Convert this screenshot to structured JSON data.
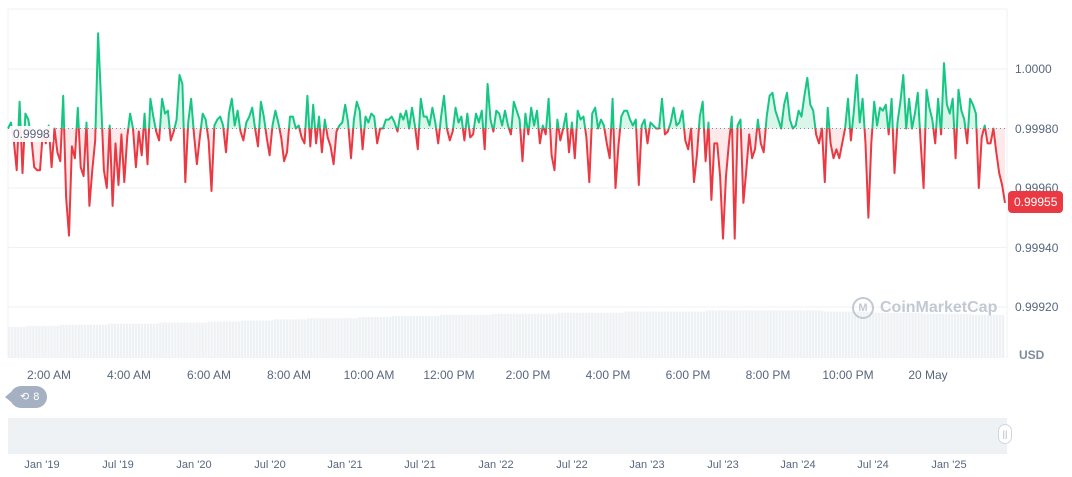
{
  "chart_data": {
    "type": "line",
    "title": "",
    "ylabel": "USD",
    "xlabel": "",
    "baseline": 0.9998,
    "current_price": 0.99955,
    "ylim": [
      0.99912,
      1.0002
    ],
    "y_ticks": [
      "1.0000",
      "0.99980",
      "0.99960",
      "0.99940",
      "0.99920"
    ],
    "x_ticks": [
      "2:00 AM",
      "4:00 AM",
      "6:00 AM",
      "8:00 AM",
      "10:00 AM",
      "12:00 PM",
      "2:00 PM",
      "4:00 PM",
      "6:00 PM",
      "8:00 PM",
      "10:00 PM",
      "20 May"
    ],
    "navigator_ticks": [
      "Jan '19",
      "Jul '19",
      "Jan '20",
      "Jul '20",
      "Jan '21",
      "Jul '21",
      "Jan '22",
      "Jul '22",
      "Jan '23",
      "Jul '23",
      "Jan '24",
      "Jul '24",
      "Jan '25"
    ],
    "grid": true,
    "colors": {
      "up": "#16c784",
      "down": "#ea3943",
      "up_fill": "#d6f5e8",
      "down_fill": "#fde6e8",
      "volume": "#eff2f5",
      "grid": "#eff2f5"
    },
    "values": [
      0.9998,
      0.99982,
      0.99976,
      0.99966,
      0.99989,
      0.99965,
      0.99985,
      0.99983,
      0.99977,
      0.99967,
      0.99966,
      0.99966,
      0.99979,
      0.99975,
      0.99981,
      0.99967,
      0.9998,
      0.99972,
      0.99969,
      0.99991,
      0.99957,
      0.99944,
      0.99974,
      0.9997,
      0.99987,
      0.99967,
      0.99964,
      0.99982,
      0.99954,
      0.99966,
      0.99976,
      1.00012,
      0.9999,
      0.99966,
      0.9996,
      0.99981,
      0.99954,
      0.99975,
      0.99961,
      0.99978,
      0.99962,
      0.99977,
      0.99985,
      0.9998,
      0.99967,
      0.99979,
      0.99971,
      0.99985,
      0.99968,
      0.9999,
      0.99984,
      0.99979,
      0.99976,
      0.9999,
      0.99985,
      0.99986,
      0.99976,
      0.99979,
      0.99983,
      0.99998,
      0.99995,
      0.99962,
      0.99982,
      0.9999,
      0.99978,
      0.99968,
      0.99977,
      0.99985,
      0.99983,
      0.99976,
      0.99959,
      0.99981,
      0.99983,
      0.99984,
      0.99981,
      0.99972,
      0.99985,
      0.9999,
      0.99981,
      0.99986,
      0.99979,
      0.99976,
      0.99982,
      0.99984,
      0.99987,
      0.9998,
      0.99974,
      0.99989,
      0.99984,
      0.99977,
      0.99971,
      0.99981,
      0.99986,
      0.99982,
      0.99977,
      0.99969,
      0.99972,
      0.99984,
      0.99984,
      0.9998,
      0.99981,
      0.99977,
      0.99975,
      0.99991,
      0.99974,
      0.99988,
      0.99975,
      0.99984,
      0.99972,
      0.99983,
      0.99977,
      0.99974,
      0.99968,
      0.99979,
      0.99981,
      0.99982,
      0.99988,
      0.99982,
      0.9997,
      0.99983,
      0.99989,
      0.99986,
      0.99973,
      0.99984,
      0.99982,
      0.99985,
      0.99984,
      0.99975,
      0.9998,
      0.9998,
      0.99983,
      0.99983,
      0.99984,
      0.99982,
      0.99979,
      0.99985,
      0.99983,
      0.99986,
      0.9998,
      0.99987,
      0.99981,
      0.99973,
      0.9999,
      0.99984,
      0.99984,
      0.99981,
      0.99987,
      0.99982,
      0.99975,
      0.99984,
      0.99991,
      0.9998,
      0.99976,
      0.99979,
      0.99987,
      0.99982,
      0.99984,
      0.99976,
      0.99985,
      0.99977,
      0.99978,
      0.99985,
      0.99982,
      0.99986,
      0.99973,
      0.99995,
      0.99983,
      0.99979,
      0.99986,
      0.99985,
      0.99981,
      0.99986,
      0.99981,
      0.99978,
      0.99989,
      0.99986,
      0.99983,
      0.99969,
      0.99985,
      0.99978,
      0.99987,
      0.99981,
      0.99986,
      0.99975,
      0.99981,
      0.99978,
      0.9999,
      0.99971,
      0.99966,
      0.99983,
      0.99976,
      0.9998,
      0.99985,
      0.99972,
      0.99982,
      0.9997,
      0.99986,
      0.99983,
      0.99984,
      0.99977,
      0.99962,
      0.99985,
      0.99987,
      0.9998,
      0.99983,
      0.99981,
      0.99975,
      0.9997,
      0.9999,
      0.9996,
      0.99974,
      0.99984,
      0.99986,
      0.99986,
      0.99983,
      0.99981,
      0.99983,
      0.99961,
      0.99981,
      0.99983,
      0.99975,
      0.99982,
      0.99981,
      0.9998,
      0.9998,
      0.9999,
      0.99978,
      0.99979,
      0.99982,
      0.99987,
      0.99981,
      0.99982,
      0.99986,
      0.99976,
      0.99973,
      0.9998,
      0.99962,
      0.99971,
      0.99984,
      0.99989,
      0.99969,
      0.99982,
      0.99956,
      0.99975,
      0.99975,
      0.99964,
      0.99943,
      0.99964,
      0.99975,
      0.99984,
      0.99943,
      0.99981,
      0.99983,
      0.99955,
      0.99966,
      0.99978,
      0.9997,
      0.99973,
      0.99983,
      0.99975,
      0.99972,
      0.99984,
      0.99991,
      0.99992,
      0.99986,
      0.99983,
      0.9998,
      0.99988,
      0.99992,
      0.99983,
      0.9998,
      0.99981,
      0.99986,
      0.99984,
      0.99991,
      0.99997,
      0.99988,
      0.99986,
      0.99978,
      0.99975,
      0.9998,
      0.99962,
      0.99987,
      0.99975,
      0.9997,
      0.99973,
      0.9997,
      0.99975,
      0.9998,
      0.9999,
      0.99976,
      0.99986,
      0.99998,
      0.99982,
      0.9999,
      0.99975,
      0.9995,
      0.99975,
      0.99989,
      0.99981,
      0.99987,
      0.99986,
      0.99988,
      0.99978,
      0.9999,
      0.99965,
      0.99982,
      0.99989,
      0.99998,
      0.9998,
      0.9999,
      0.9998,
      0.99985,
      0.99992,
      0.99975,
      0.9996,
      0.99993,
      0.99987,
      0.99983,
      0.99975,
      0.9999,
      0.99978,
      1.00002,
      0.99988,
      0.99985,
      0.9999,
      0.9997,
      0.99993,
      0.99986,
      0.99983,
      0.99975,
      0.9999,
      0.99988,
      0.99985,
      0.9996,
      0.99977,
      0.99981,
      0.99975,
      0.99975,
      0.9998,
      0.99972,
      0.99965,
      0.99961,
      0.99955
    ],
    "volume": [
      0.3,
      0.31,
      0.31,
      0.32,
      0.32,
      0.32,
      0.33,
      0.33,
      0.33,
      0.34,
      0.34,
      0.34,
      0.35,
      0.35,
      0.36,
      0.36,
      0.37,
      0.37,
      0.38,
      0.38,
      0.38,
      0.39,
      0.39,
      0.4,
      0.4,
      0.4,
      0.41,
      0.41,
      0.41,
      0.42,
      0.42,
      0.42,
      0.42,
      0.43,
      0.43,
      0.43,
      0.43,
      0.44,
      0.44,
      0.44,
      0.44,
      0.44,
      0.45,
      0.45,
      0.45,
      0.45,
      0.45,
      0.45,
      0.45,
      0.44,
      0.44,
      0.44,
      0.43,
      0.43,
      0.43,
      0.42,
      0.42,
      0.42,
      0.41,
      0.41
    ]
  },
  "watermark": {
    "brand": "CoinMarketCap",
    "icon": "coinmarketcap-logo-icon"
  },
  "ref_label": "0.9998",
  "price_badge": "0.99955",
  "currency": "USD",
  "events": {
    "icon": "history-clock-icon",
    "count": "8"
  },
  "navigator": {
    "handle_icon": "drag-handle-icon"
  }
}
